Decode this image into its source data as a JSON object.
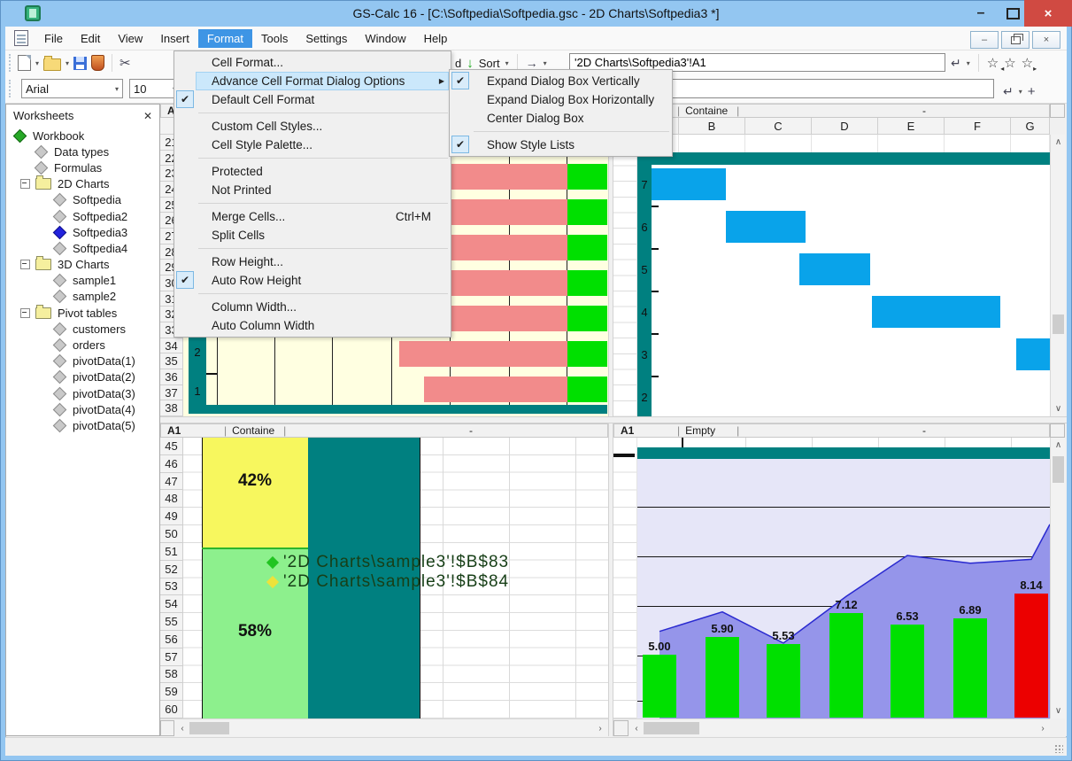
{
  "window": {
    "title": "GS-Calc 16 - [C:\\Softpedia\\Softpedia.gsc - 2D Charts\\Softpedia3 *]",
    "minimize_glyph": "–",
    "close_glyph": "×"
  },
  "menu_bar": {
    "items": [
      "File",
      "Edit",
      "View",
      "Insert",
      "Format",
      "Tools",
      "Settings",
      "Window",
      "Help"
    ],
    "active_item": "Format"
  },
  "toolbar": {
    "hidden_label_fragment": "d",
    "sort_label": "Sort",
    "name_box_value": "'2D Charts\\Softpedia3'!A1",
    "font_name": "Arial",
    "font_size": "10",
    "formula_value": ""
  },
  "format_menu": {
    "items": [
      {
        "type": "item",
        "label": "Cell Format..."
      },
      {
        "type": "item",
        "label": "Advance Cell Format Dialog Options",
        "highlighted": true,
        "has_submenu": true
      },
      {
        "type": "item",
        "label": "Default Cell Format",
        "checked": true
      },
      {
        "type": "separator"
      },
      {
        "type": "item",
        "label": "Custom Cell Styles..."
      },
      {
        "type": "item",
        "label": "Cell Style Palette..."
      },
      {
        "type": "separator"
      },
      {
        "type": "item",
        "label": "Protected"
      },
      {
        "type": "item",
        "label": "Not Printed"
      },
      {
        "type": "separator"
      },
      {
        "type": "item",
        "label": "Merge Cells...",
        "shortcut": "Ctrl+M"
      },
      {
        "type": "item",
        "label": "Split Cells"
      },
      {
        "type": "separator"
      },
      {
        "type": "item",
        "label": "Row Height..."
      },
      {
        "type": "item",
        "label": "Auto Row Height",
        "checked": true
      },
      {
        "type": "separator"
      },
      {
        "type": "item",
        "label": "Column Width..."
      },
      {
        "type": "item",
        "label": "Auto Column Width"
      }
    ],
    "submenu": {
      "items": [
        {
          "type": "item",
          "label": "Expand Dialog Box Vertically",
          "checked": true
        },
        {
          "type": "item",
          "label": "Expand Dialog Box Horizontally"
        },
        {
          "type": "item",
          "label": "Center Dialog Box"
        },
        {
          "type": "separator"
        },
        {
          "type": "item",
          "label": "Show Style Lists",
          "checked": true
        }
      ]
    }
  },
  "sidebar": {
    "title": "Worksheets",
    "close_glyph": "✕",
    "tree": [
      {
        "label": "Workbook",
        "icon": "diamond-green",
        "level": 0
      },
      {
        "label": "Data types",
        "icon": "diamond-gray",
        "level": 1
      },
      {
        "label": "Formulas",
        "icon": "diamond-gray",
        "level": 1
      },
      {
        "label": "2D Charts",
        "icon": "folder",
        "level": 1,
        "expanded": true
      },
      {
        "label": "Softpedia",
        "icon": "diamond-gray",
        "level": 2
      },
      {
        "label": "Softpedia2",
        "icon": "diamond-gray",
        "level": 2
      },
      {
        "label": "Softpedia3",
        "icon": "diamond-blue",
        "level": 2,
        "selected": true
      },
      {
        "label": "Softpedia4",
        "icon": "diamond-gray",
        "level": 2
      },
      {
        "label": "3D Charts",
        "icon": "folder",
        "level": 1,
        "expanded": true
      },
      {
        "label": "sample1",
        "icon": "diamond-gray",
        "level": 2
      },
      {
        "label": "sample2",
        "icon": "diamond-gray",
        "level": 2
      },
      {
        "label": "Pivot tables",
        "icon": "folder",
        "level": 1,
        "expanded": true
      },
      {
        "label": "customers",
        "icon": "diamond-gray",
        "level": 2
      },
      {
        "label": "orders",
        "icon": "diamond-gray",
        "level": 2
      },
      {
        "label": "pivotData(1)",
        "icon": "diamond-gray",
        "level": 2
      },
      {
        "label": "pivotData(2)",
        "icon": "diamond-gray",
        "level": 2
      },
      {
        "label": "pivotData(3)",
        "icon": "diamond-gray",
        "level": 2
      },
      {
        "label": "pivotData(4)",
        "icon": "diamond-gray",
        "level": 2
      },
      {
        "label": "pivotData(5)",
        "icon": "diamond-gray",
        "level": 2
      }
    ]
  },
  "panes": {
    "top_left": {
      "cell_ref": "A1",
      "cell_info": "Containe",
      "format_info": "-",
      "column": "A",
      "rows": [
        21,
        22,
        23,
        24,
        25,
        26,
        27,
        28,
        29,
        30,
        31,
        32,
        33,
        34,
        35,
        36,
        37,
        38
      ]
    },
    "top_right": {
      "cell_ref": "A1",
      "cell_info": "Containe",
      "format_info": "-",
      "columns": [
        "B",
        "C",
        "D",
        "E",
        "F",
        "G"
      ]
    },
    "bottom_left": {
      "cell_ref": "A1",
      "cell_info": "Containe",
      "format_info": "-",
      "rows": [
        45,
        46,
        47,
        48,
        49,
        50,
        51,
        52,
        53,
        54,
        55,
        56,
        57,
        58,
        59,
        60
      ]
    },
    "bottom_right": {
      "cell_ref": "A1",
      "cell_info": "Empty",
      "format_info": "-"
    }
  },
  "chart_data": [
    {
      "type": "bar",
      "orientation": "horizontal",
      "axis_labels_visible": [
        "2",
        "1"
      ],
      "bar_color": "#f28b8b",
      "tip_color": "#00e000",
      "bar_end": 0.9,
      "tip_end": 1.0,
      "bars": [
        {
          "start": 0
        },
        {
          "start": 0
        },
        {
          "start": 0
        },
        {
          "start": 0
        },
        {
          "start": 0
        },
        {
          "start": 0
        },
        {
          "start": 0.48
        },
        {
          "start": 0.54
        }
      ]
    },
    {
      "type": "bar",
      "orientation": "horizontal-gantt",
      "categories": [
        "7",
        "6",
        "5",
        "4",
        "3",
        "2"
      ],
      "bar_color": "#09a3ea",
      "bars": [
        {
          "start": 0.0,
          "end": 0.187
        },
        {
          "start": 0.187,
          "end": 0.387
        },
        {
          "start": 0.371,
          "end": 0.549
        },
        {
          "start": 0.553,
          "end": 0.876
        },
        {
          "start": 0.916,
          "end": 1.0
        },
        null
      ]
    },
    {
      "type": "stacked-bar",
      "slices": [
        {
          "label": "42%",
          "value": 42,
          "color": "#f7f75e"
        },
        {
          "label": "58%",
          "value": 58,
          "color": "#8df08d"
        }
      ],
      "legend": [
        {
          "marker_color": "#21c421",
          "label": "'2D Charts\\sample3'!$B$83"
        },
        {
          "marker_color": "#ede23b",
          "label": "'2D Charts\\sample3'!$B$84"
        }
      ]
    },
    {
      "type": "bar+area",
      "bar_labels": [
        "5.00",
        "5.90",
        "5.53",
        "7.12",
        "6.53",
        "6.89",
        "8.14"
      ],
      "bar_values": [
        5.0,
        5.9,
        5.53,
        7.12,
        6.53,
        6.89,
        8.14
      ],
      "bar_colors": [
        "#00e000",
        "#00e000",
        "#00e000",
        "#00e000",
        "#00e000",
        "#00e000",
        "#ec0000"
      ],
      "area_values": [
        6.2,
        7.2,
        5.6,
        8.0,
        10.1,
        9.7,
        9.9
      ],
      "area_end_value": 11.7,
      "area_fill": "#9595ea",
      "area_line": "#2a2ad0",
      "plot_bg": "#e6e6f8"
    }
  ]
}
